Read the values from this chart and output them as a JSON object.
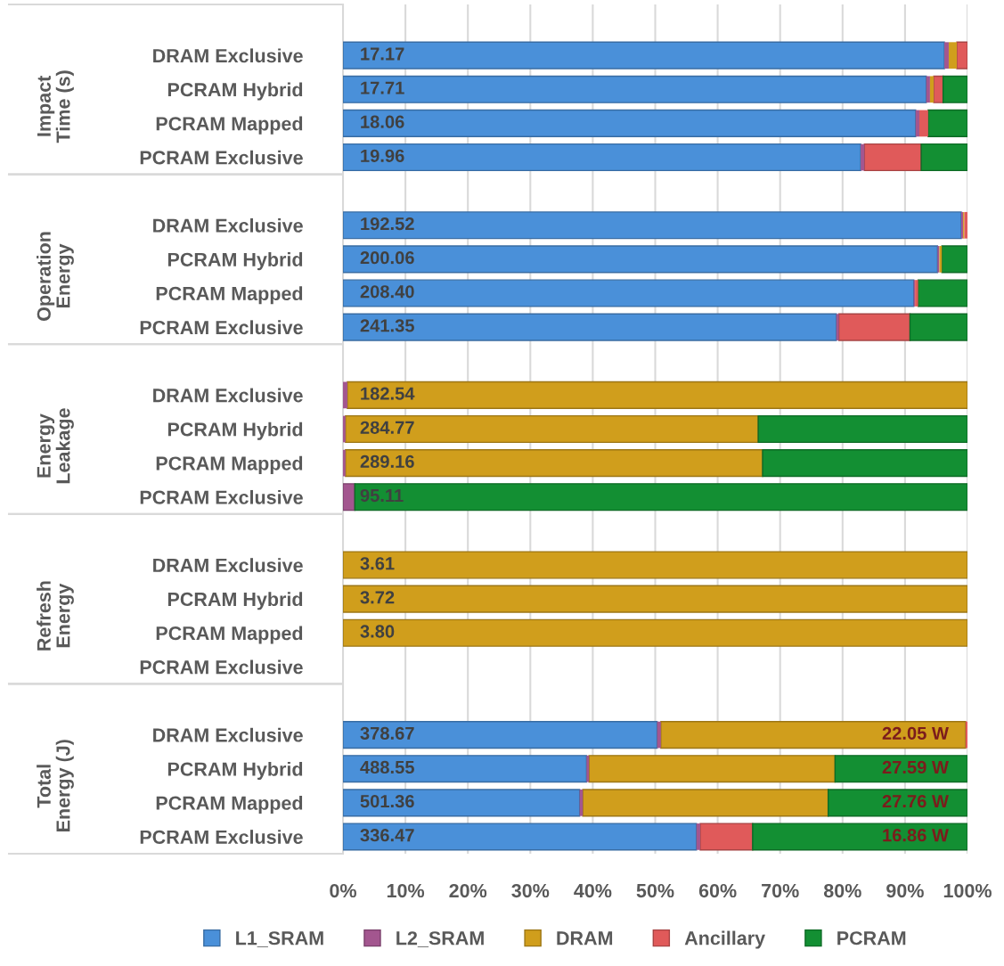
{
  "chart_data": {
    "type": "bar",
    "orientation": "horizontal",
    "stacked": true,
    "categories": [
      null,
      "DRAM Exclusive",
      "PCRAM Hybrid",
      "PCRAM Mapped",
      "PCRAM Exclusive",
      null,
      "DRAM Exclusive",
      "PCRAM Hybrid",
      "PCRAM Mapped",
      "PCRAM Exclusive",
      null,
      "DRAM Exclusive",
      "PCRAM Hybrid",
      "PCRAM Mapped",
      "PCRAM Exclusive",
      null,
      "DRAM Exclusive",
      "PCRAM Hybrid",
      "PCRAM Mapped",
      "PCRAM Exclusive",
      null,
      "DRAM Exclusive",
      "PCRAM Hybrid",
      "PCRAM Mapped",
      "PCRAM Exclusive"
    ],
    "series": [
      {
        "name": "L1_SRAM",
        "color": "#4a90d9",
        "values": [
          null,
          96.3,
          93.4,
          91.7,
          82.9,
          null,
          99.0,
          95.2,
          91.4,
          79.0,
          null,
          0,
          0,
          0,
          0,
          null,
          0,
          0,
          0,
          null,
          null,
          50.3,
          39.0,
          37.9,
          56.6
        ]
      },
      {
        "name": "L2_SRAM",
        "color": "#a3568f",
        "values": [
          null,
          0.7,
          0.6,
          0.6,
          0.6,
          null,
          0.3,
          0.3,
          0.2,
          0.4,
          null,
          0.7,
          0.4,
          0.4,
          1.9,
          null,
          0,
          0,
          0,
          null,
          null,
          0.6,
          0.4,
          0.5,
          0.6
        ]
      },
      {
        "name": "DRAM",
        "color": "#d09e1c",
        "values": [
          null,
          1.3,
          0.6,
          0,
          0,
          null,
          0.2,
          0.4,
          0,
          0,
          null,
          99.3,
          66.1,
          66.8,
          0,
          null,
          100,
          100,
          100,
          null,
          null,
          48.8,
          39.4,
          39.3,
          0
        ]
      },
      {
        "name": "Ancillary",
        "color": "#e05a5a",
        "values": [
          null,
          1.7,
          1.5,
          1.4,
          9.1,
          null,
          0.5,
          0,
          0.5,
          11.4,
          null,
          0,
          0,
          0,
          0,
          null,
          0,
          0,
          0,
          null,
          null,
          0.3,
          0,
          0,
          8.4
        ]
      },
      {
        "name": "PCRAM",
        "color": "#138f33",
        "values": [
          null,
          0,
          3.9,
          6.3,
          7.4,
          null,
          0,
          4.1,
          7.9,
          9.2,
          null,
          0,
          33.5,
          32.8,
          98.1,
          null,
          0,
          0,
          0,
          null,
          null,
          0,
          21.2,
          22.3,
          34.4
        ]
      }
    ],
    "xlim": [
      0,
      100
    ],
    "xticks": [
      {
        "value": 0,
        "label": "0%"
      },
      {
        "value": 10,
        "label": "10%"
      },
      {
        "value": 20,
        "label": "20%"
      },
      {
        "value": 30,
        "label": "30%"
      },
      {
        "value": 40,
        "label": "40%"
      },
      {
        "value": 50,
        "label": "50%"
      },
      {
        "value": 60,
        "label": "60%"
      },
      {
        "value": 70,
        "label": "70%"
      },
      {
        "value": 80,
        "label": "80%"
      },
      {
        "value": 90,
        "label": "90%"
      },
      {
        "value": 100,
        "label": "100%"
      }
    ],
    "annotations": [
      "Impact\nTime (s)",
      "Operation\nEnergy",
      "Energy\nLeakage",
      "Refresh\nEnergy",
      "Total\nEnergy (J)",
      "17.17",
      "17.71",
      "18.06",
      "19.96",
      "192.52",
      "200.06",
      "208.40",
      "241.35",
      "182.54",
      "284.77",
      "289.16",
      "95.11",
      "3.61",
      "3.72",
      "3.80",
      "378.67",
      "488.55",
      "501.36",
      "336.47",
      "22.05 W",
      "27.59 W",
      "27.76 W",
      "16.86 W"
    ],
    "grid": "x",
    "legend": "bottom"
  }
}
